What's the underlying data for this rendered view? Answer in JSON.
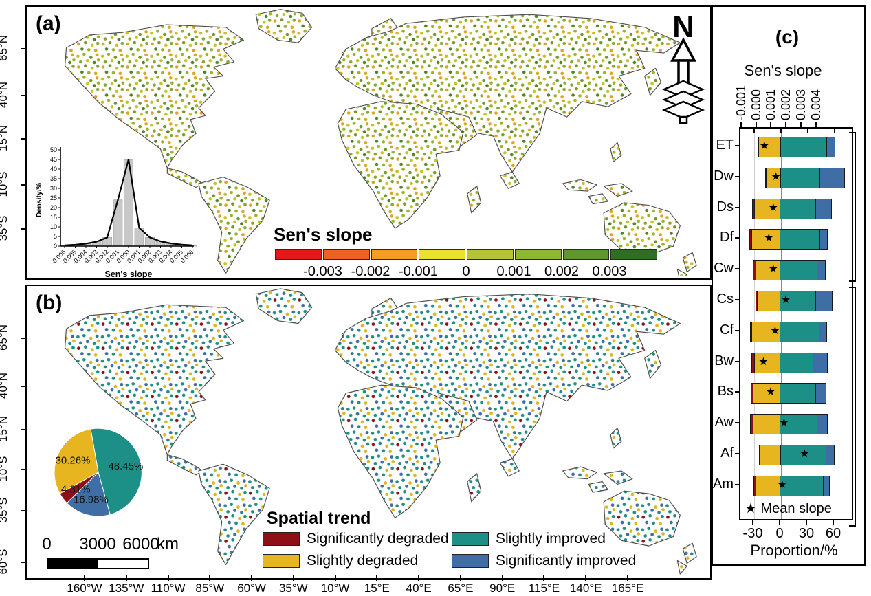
{
  "figure": {
    "panel_a_label": "(a)",
    "panel_b_label": "(b)",
    "panel_c_label": "(c)"
  },
  "panel_a": {
    "north_label": "N",
    "lat_labels": [
      "65°N",
      "40°N",
      "15°N",
      "10°S",
      "35°S"
    ],
    "colorbar": {
      "title": "Sen's slope",
      "tick_labels": [
        "-0.003",
        "-0.002",
        "-0.001",
        "0",
        "0.001",
        "0.002",
        "0.003"
      ],
      "colors": [
        "#e0191c",
        "#ef6023",
        "#f59d21",
        "#f0e02e",
        "#b4c433",
        "#8cb832",
        "#5d9732",
        "#2d7021"
      ]
    }
  },
  "panel_b": {
    "lat_labels": [
      "65°N",
      "40°N",
      "15°N",
      "10°S",
      "35°S",
      "60°S"
    ],
    "lon_labels": [
      "160°W",
      "135°W",
      "110°W",
      "85°W",
      "60°W",
      "35°W",
      "10°W",
      "15°E",
      "40°E",
      "65°E",
      "90°E",
      "115°E",
      "140°E",
      "165°E"
    ],
    "scalebar": {
      "labels": [
        "0",
        "3000",
        "6000"
      ],
      "unit": "km"
    },
    "legend": {
      "title": "Spatial trend",
      "items": [
        {
          "label": "Significantly degraded",
          "color": "#8e1016"
        },
        {
          "label": "Slightly degraded",
          "color": "#e6b51f"
        },
        {
          "label": "Slightly improved",
          "color": "#1c8f87"
        },
        {
          "label": "Significantly improved",
          "color": "#3f6ea6"
        }
      ]
    }
  },
  "chart_data": [
    {
      "type": "bar",
      "name": "panel-a-histogram-inset",
      "xlabel": "Sen's slope",
      "ylabel": "Density/%",
      "categories": [
        "-0.006",
        "-0.005",
        "-0.004",
        "-0.003",
        "-0.002",
        "-0.001",
        "0.000",
        "0.001",
        "0.002",
        "0.003",
        "0.004",
        "0.005",
        "0.006"
      ],
      "values": [
        0.4,
        0.7,
        1.3,
        2.3,
        4.5,
        24,
        45,
        9.5,
        4.5,
        2.5,
        1.4,
        0.8,
        0.4
      ],
      "curve_overlay": true,
      "ylim": [
        0,
        50
      ],
      "yticks": [
        0,
        5,
        10,
        15,
        20,
        25,
        30,
        35,
        40,
        45,
        50
      ],
      "bar_color": "#c8c8c8"
    },
    {
      "type": "pie",
      "name": "panel-b-spatial-trend-pie",
      "start_angle_deg": -10,
      "slices": [
        {
          "label": "Slightly improved",
          "value": 48.45,
          "display": "48.45%",
          "color": "#1c8f87"
        },
        {
          "label": "Significantly improved",
          "value": 16.98,
          "display": "16.98%",
          "color": "#3f6ea6"
        },
        {
          "label": "Significantly degraded",
          "value": 4.31,
          "display": "4.31%",
          "color": "#8e1016"
        },
        {
          "label": "Slightly degraded",
          "value": 30.26,
          "display": "30.26%",
          "color": "#e6b51f"
        }
      ]
    },
    {
      "type": "bar",
      "subtype": "stacked-horizontal-diverging",
      "name": "panel-c-proportion-by-climate-zone",
      "title": "(c)",
      "top_axis": {
        "label": "Sen's slope",
        "tick_labels": [
          "-0.001",
          "0.000",
          "0.001",
          "0.002",
          "0.003",
          "0.004"
        ]
      },
      "xlabel": "Proportion/%",
      "xticks": [
        -30,
        0,
        30,
        60
      ],
      "xlim": [
        -45,
        79
      ],
      "categories": [
        "ET",
        "Dw",
        "Ds",
        "Df",
        "Cw",
        "Cs",
        "Cf",
        "Bw",
        "Bs",
        "Aw",
        "Af",
        "Am"
      ],
      "series": [
        {
          "name": "Significantly degraded",
          "side": "negative",
          "color": "#8e1016",
          "values": [
            0.5,
            0.5,
            3,
            3,
            3.5,
            2.5,
            3,
            4,
            3,
            4,
            1,
            2.5
          ]
        },
        {
          "name": "Slightly degraded",
          "side": "negative",
          "color": "#e6b51f",
          "values": [
            26,
            17,
            29,
            32.5,
            28,
            26,
            32,
            29,
            31,
            31,
            24,
            28
          ]
        },
        {
          "name": "Slightly improved",
          "side": "positive",
          "color": "#1c8f87",
          "values": [
            52,
            44.5,
            41,
            45.5,
            42,
            41,
            45,
            38,
            41,
            42,
            52,
            49
          ]
        },
        {
          "name": "Significantly improved",
          "side": "positive",
          "color": "#3f6ea6",
          "values": [
            10,
            28.5,
            18.5,
            9.5,
            10,
            19,
            9,
            17,
            12,
            13,
            10,
            8
          ]
        }
      ],
      "mean_slope_star_pct": [
        -18,
        -5,
        -8,
        -13,
        -8,
        6,
        -6,
        -19,
        -11,
        4,
        27,
        2
      ],
      "star_glyph": "★",
      "legend_label": "Mean slope",
      "group_brackets": [
        "ET–Cw",
        "Cs–Am"
      ]
    }
  ]
}
